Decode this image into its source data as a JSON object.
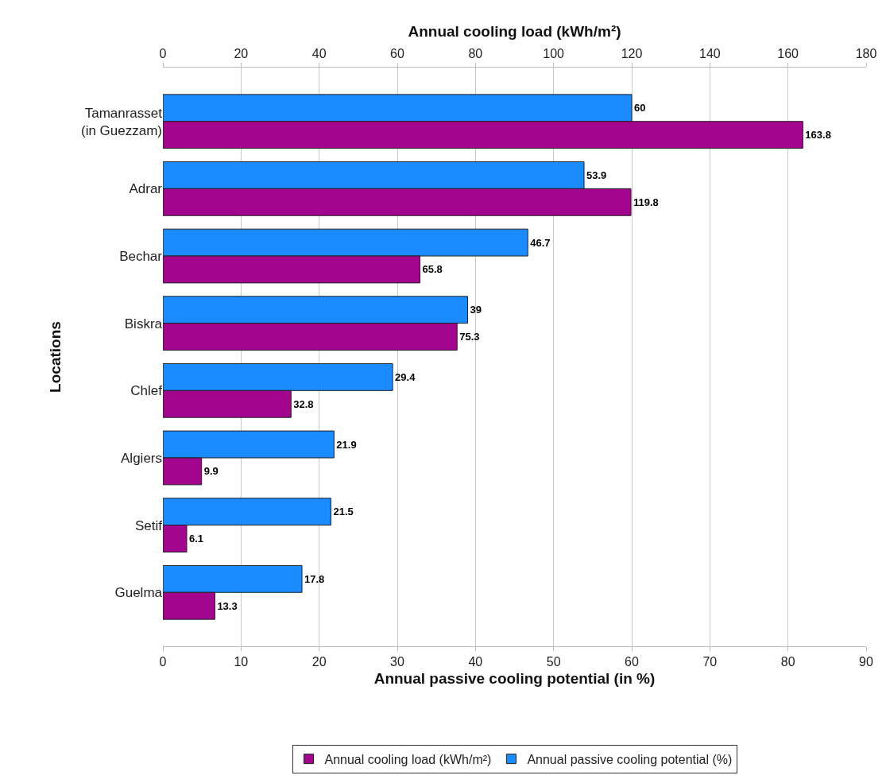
{
  "chart_data": {
    "type": "bar",
    "orientation": "horizontal",
    "categories": [
      "Tamanrasset\n(in Guezzam)",
      "Adrar",
      "Bechar",
      "Biskra",
      "Chlef",
      "Algiers",
      "Setif",
      "Guelma"
    ],
    "series": [
      {
        "name": "Annual cooling load (kWh/m²)",
        "color": "#a3058f",
        "axis": "x2",
        "values": [
          163.8,
          119.8,
          65.8,
          75.3,
          32.8,
          9.9,
          6.1,
          13.3
        ]
      },
      {
        "name": "Annual passive cooling potential (%)",
        "color": "#1a8cff",
        "values": [
          60,
          53.9,
          46.7,
          39,
          29.4,
          21.9,
          21.5,
          17.8
        ]
      }
    ],
    "xlabel": "Annual passive cooling potential (in %)",
    "x2label": "Annual cooling load (kWh/m²)",
    "ylabel": "Locations",
    "xlim": [
      0,
      90
    ],
    "xticks": [
      0,
      10,
      20,
      30,
      40,
      50,
      60,
      70,
      80,
      90
    ],
    "x2lim": [
      0,
      180
    ],
    "x2ticks": [
      0,
      20,
      40,
      60,
      80,
      100,
      120,
      140,
      160,
      180
    ],
    "data_labels": true,
    "grid": "x",
    "legend": "bottom"
  }
}
